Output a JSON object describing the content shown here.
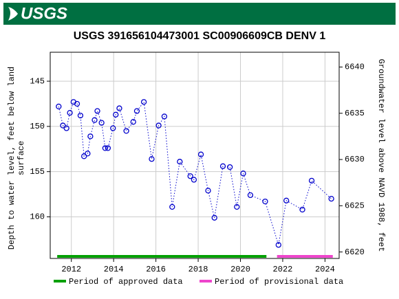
{
  "header": {
    "logo": "USGS"
  },
  "chart_data": {
    "type": "scatter-line",
    "title": "USGS 391656104473001 SC00906609CB DENV 1",
    "ylabel": [
      "Depth to water level, feet below land",
      "surface"
    ],
    "y2label": "Groundwater level above NAVD 1988, feet",
    "xlim": [
      2011.0,
      2024.67
    ],
    "xticks": [
      2012,
      2014,
      2016,
      2018,
      2020,
      2022,
      2024
    ],
    "ylim": [
      141.8,
      164.6
    ],
    "y_inverted": true,
    "yticks": [
      145,
      150,
      155,
      160
    ],
    "y2lim": [
      6619.3,
      6641.6
    ],
    "y2ticks": [
      6620,
      6625,
      6630,
      6635,
      6640
    ],
    "grid": true,
    "series": [
      {
        "color": "#0000cc",
        "x": [
          2011.4,
          2011.6,
          2011.77,
          2011.93,
          2012.1,
          2012.27,
          2012.43,
          2012.6,
          2012.77,
          2012.9,
          2013.1,
          2013.23,
          2013.43,
          2013.6,
          2013.73,
          2013.97,
          2014.1,
          2014.27,
          2014.6,
          2014.93,
          2015.1,
          2015.43,
          2015.8,
          2016.13,
          2016.4,
          2016.77,
          2017.13,
          2017.63,
          2017.8,
          2018.13,
          2018.47,
          2018.77,
          2019.17,
          2019.5,
          2019.83,
          2020.13,
          2020.47,
          2021.17,
          2021.8,
          2022.17,
          2022.93,
          2023.37,
          2024.3
        ],
        "values": [
          147.8,
          149.9,
          150.2,
          148.5,
          147.3,
          147.5,
          148.8,
          153.3,
          153.0,
          151.1,
          149.3,
          148.3,
          149.6,
          152.4,
          152.4,
          150.2,
          148.7,
          148.0,
          150.5,
          149.5,
          148.3,
          147.3,
          153.6,
          149.9,
          148.9,
          158.9,
          153.9,
          155.5,
          155.9,
          153.1,
          157.1,
          160.1,
          154.4,
          154.5,
          158.9,
          155.2,
          157.6,
          158.3,
          163.1,
          158.2,
          159.2,
          156.0,
          158.0
        ]
      }
    ],
    "periods": [
      {
        "name": "Period of approved data",
        "color": "#00a000",
        "start": 2011.33,
        "end": 2021.23
      },
      {
        "name": "Period of provisional data",
        "color": "#ee44cc",
        "start": 2021.73,
        "end": 2024.37
      }
    ]
  }
}
